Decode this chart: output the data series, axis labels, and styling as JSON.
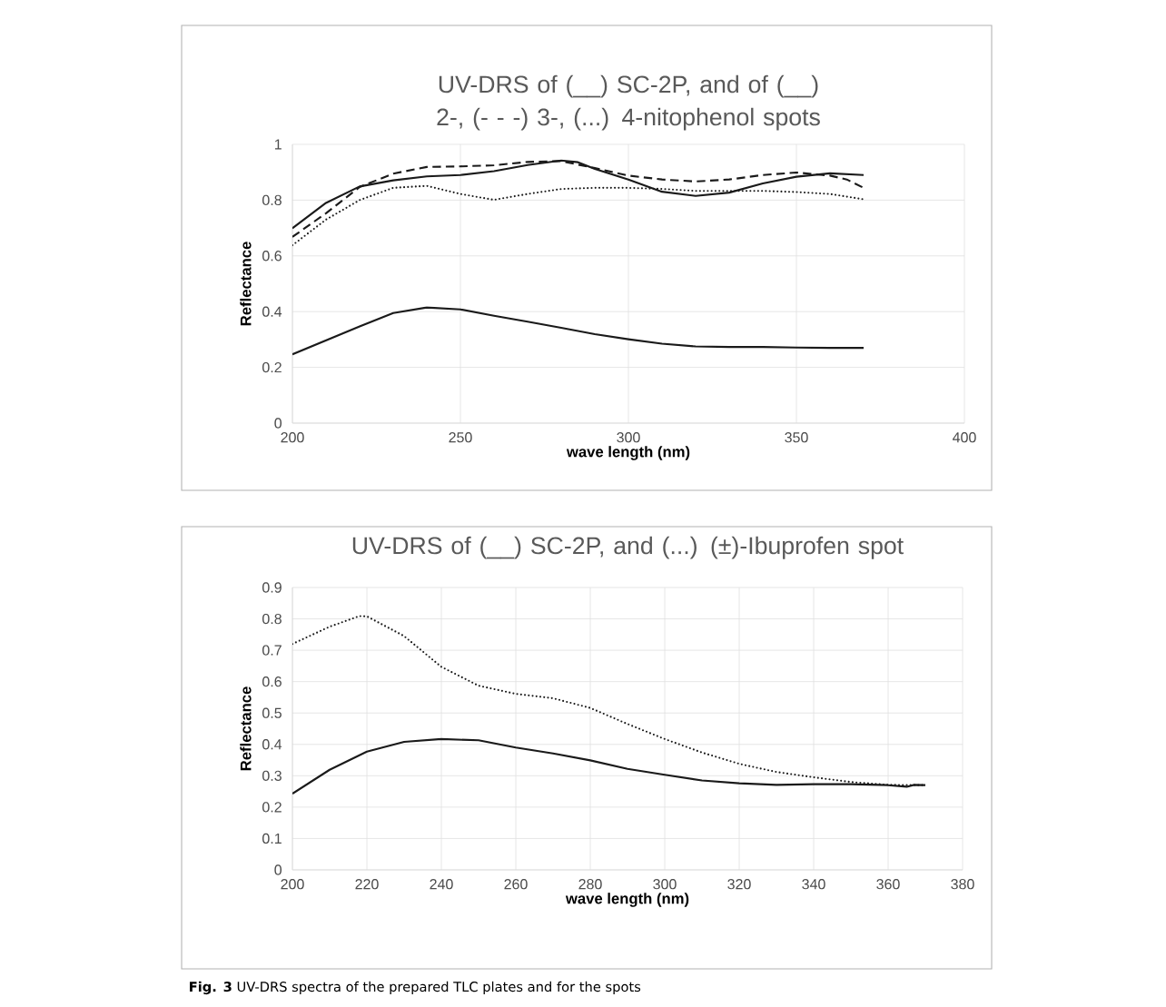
{
  "chart_data": [
    {
      "type": "line",
      "title": "UV-DRS of (__) SC-2P, and of (__) 2-, (- - -) 3-, (...) 4-nitophenol spots",
      "xlabel": "wave length (nm)",
      "ylabel": "Reflectance",
      "xlim": [
        200,
        400
      ],
      "ylim": [
        0,
        1
      ],
      "xticks": [
        200,
        250,
        300,
        350,
        400
      ],
      "yticks": [
        0,
        0.2,
        0.4,
        0.6,
        0.8,
        1
      ],
      "grid": true,
      "marker": "none",
      "series": [
        {
          "color": "#1a1a1a",
          "line_style": "solid",
          "x": [
            200,
            220,
            230,
            240,
            250,
            260,
            270,
            280,
            290,
            300,
            310,
            320,
            330,
            340,
            350,
            360,
            370
          ],
          "values": [
            0.247,
            0.347,
            0.395,
            0.415,
            0.408,
            0.385,
            0.364,
            0.342,
            0.319,
            0.301,
            0.285,
            0.275,
            0.273,
            0.273,
            0.271,
            0.27,
            0.27
          ]
        },
        {
          "color": "#1a1a1a",
          "line_style": "solid",
          "x": [
            200,
            210,
            220,
            230,
            240,
            250,
            260,
            270,
            280,
            285,
            290,
            300,
            310,
            320,
            330,
            340,
            350,
            360,
            370
          ],
          "values": [
            0.699,
            0.79,
            0.849,
            0.871,
            0.885,
            0.89,
            0.904,
            0.926,
            0.942,
            0.936,
            0.912,
            0.874,
            0.83,
            0.815,
            0.827,
            0.86,
            0.884,
            0.896,
            0.89
          ]
        },
        {
          "color": "#1a1a1a",
          "line_style": "dashed",
          "x": [
            200,
            210,
            220,
            230,
            240,
            250,
            260,
            270,
            280,
            290,
            300,
            310,
            320,
            330,
            340,
            350,
            360,
            365,
            370
          ],
          "values": [
            0.668,
            0.753,
            0.847,
            0.895,
            0.919,
            0.921,
            0.925,
            0.937,
            0.94,
            0.915,
            0.888,
            0.874,
            0.867,
            0.874,
            0.89,
            0.899,
            0.888,
            0.874,
            0.844
          ]
        },
        {
          "color": "#1a1a1a",
          "line_style": "dotted",
          "x": [
            200,
            210,
            220,
            230,
            240,
            250,
            260,
            270,
            280,
            290,
            300,
            310,
            320,
            330,
            340,
            350,
            360,
            370
          ],
          "values": [
            0.638,
            0.73,
            0.8,
            0.844,
            0.851,
            0.822,
            0.801,
            0.822,
            0.84,
            0.844,
            0.844,
            0.84,
            0.833,
            0.833,
            0.833,
            0.829,
            0.822,
            0.803
          ]
        }
      ]
    },
    {
      "type": "line",
      "title": "UV-DRS of (__) SC-2P, and (...) (±)-Ibuprofen spot",
      "xlabel": "wave length (nm)",
      "ylabel": "Reflectance",
      "xlim": [
        200,
        380
      ],
      "ylim": [
        0,
        0.9
      ],
      "xticks": [
        200,
        220,
        240,
        260,
        280,
        300,
        320,
        340,
        360,
        380
      ],
      "yticks": [
        0,
        0.1,
        0.2,
        0.3,
        0.4,
        0.5,
        0.6,
        0.7,
        0.8,
        0.9
      ],
      "grid": true,
      "marker": "none",
      "annotations": [
        "**Fig. 3** UV-DRS spectra of the prepared TLC plates and for the spots"
      ],
      "series": [
        {
          "color": "#1a1a1a",
          "line_style": "solid",
          "x": [
            200,
            210,
            220,
            230,
            240,
            250,
            260,
            270,
            280,
            290,
            300,
            310,
            320,
            330,
            340,
            350,
            360,
            365,
            367,
            370
          ],
          "values": [
            0.243,
            0.319,
            0.377,
            0.408,
            0.417,
            0.413,
            0.39,
            0.371,
            0.349,
            0.322,
            0.303,
            0.285,
            0.276,
            0.271,
            0.273,
            0.273,
            0.27,
            0.265,
            0.271,
            0.27
          ]
        },
        {
          "color": "#1a1a1a",
          "line_style": "dotted",
          "x": [
            200,
            210,
            218,
            220,
            230,
            240,
            250,
            260,
            270,
            280,
            290,
            300,
            310,
            320,
            330,
            340,
            350,
            360,
            370
          ],
          "values": [
            0.72,
            0.775,
            0.809,
            0.808,
            0.745,
            0.647,
            0.587,
            0.561,
            0.547,
            0.516,
            0.465,
            0.417,
            0.374,
            0.338,
            0.312,
            0.295,
            0.28,
            0.271,
            0.27
          ]
        }
      ]
    }
  ]
}
